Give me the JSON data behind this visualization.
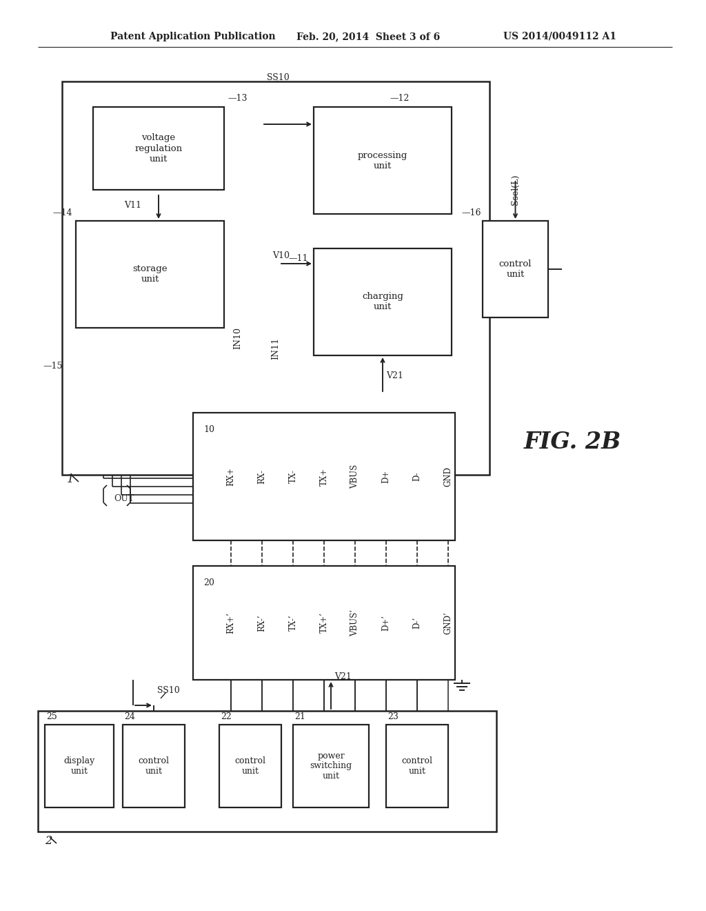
{
  "header_left": "Patent Application Publication",
  "header_mid": "Feb. 20, 2014  Sheet 3 of 6",
  "header_right": "US 2014/0049112 A1",
  "fig_label": "FIG. 2B",
  "signals_10": [
    "RX+",
    "RX-",
    "TX-",
    "TX+",
    "VBUS",
    "D+",
    "D-",
    "GND"
  ],
  "signals_20": [
    "RX+’",
    "RX-’",
    "TX-’",
    "TX+’",
    "VBUS’",
    "D+’",
    "D-’",
    "GND’"
  ]
}
